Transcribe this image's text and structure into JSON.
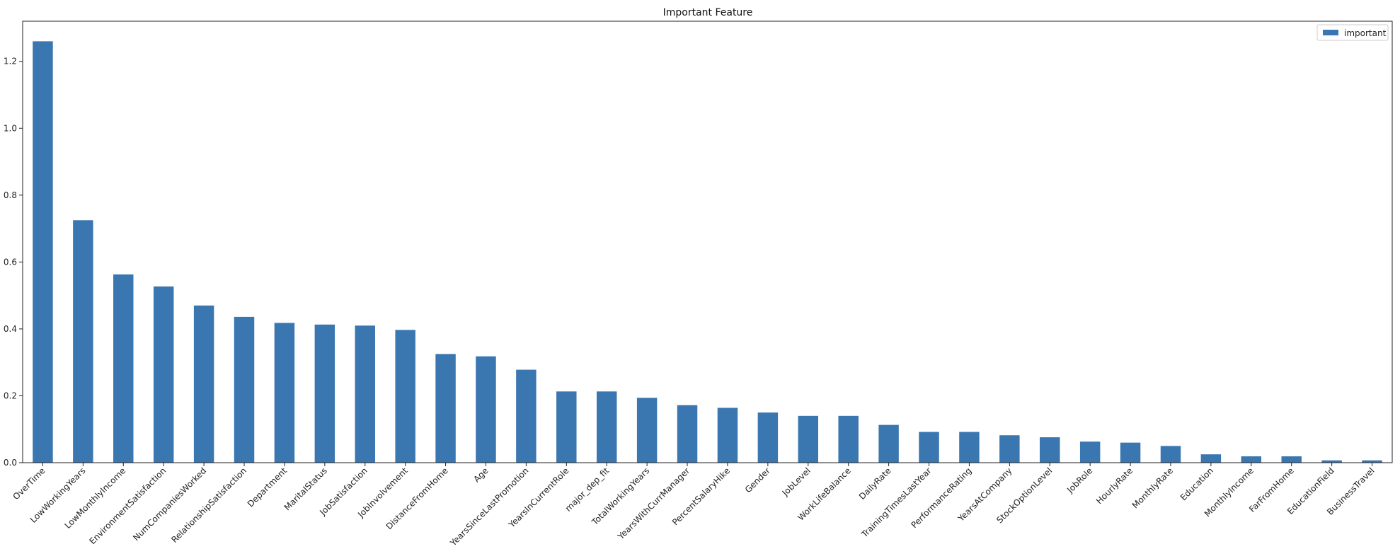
{
  "chart_data": {
    "type": "bar",
    "title": "Important Feature",
    "xlabel": "",
    "ylabel": "",
    "ylim": [
      0,
      1.32
    ],
    "yticks": [
      0.0,
      0.2,
      0.4,
      0.6,
      0.8,
      1.0,
      1.2
    ],
    "ytick_labels": [
      "0.0",
      "0.2",
      "0.4",
      "0.6",
      "0.8",
      "1.0",
      "1.2"
    ],
    "grid": false,
    "legend_position": "top-right",
    "bar_color": "#3a76b0",
    "categories": [
      "OverTime",
      "LowWorkingYears",
      "LowMonthlyIncome",
      "EnvironmentSatisfaction",
      "NumCompaniesWorked",
      "RelationshipSatisfaction",
      "Department",
      "MaritalStatus",
      "JobSatisfaction",
      "JobInvolvement",
      "DistanceFromHome",
      "Age",
      "YearsSinceLastPromotion",
      "YearsInCurrentRole",
      "major_dep_fit",
      "TotalWorkingYears",
      "YearsWithCurrManager",
      "PercentSalaryHike",
      "Gender",
      "JobLevel",
      "WorkLifeBalance",
      "DailyRate",
      "TrainingTimesLastYear",
      "PerformanceRating",
      "YearsAtCompany",
      "StockOptionLevel",
      "JobRole",
      "HourlyRate",
      "MonthlyRate",
      "Education",
      "MonthlyIncome",
      "FarFromHome",
      "EducationField",
      "BusinessTravel"
    ],
    "series": [
      {
        "name": "important",
        "values": [
          1.26,
          0.725,
          0.563,
          0.527,
          0.47,
          0.436,
          0.418,
          0.413,
          0.41,
          0.397,
          0.325,
          0.318,
          0.278,
          0.213,
          0.213,
          0.194,
          0.172,
          0.164,
          0.15,
          0.14,
          0.14,
          0.113,
          0.092,
          0.092,
          0.082,
          0.076,
          0.063,
          0.06,
          0.05,
          0.025,
          0.019,
          0.019,
          0.007,
          0.007
        ]
      }
    ]
  }
}
